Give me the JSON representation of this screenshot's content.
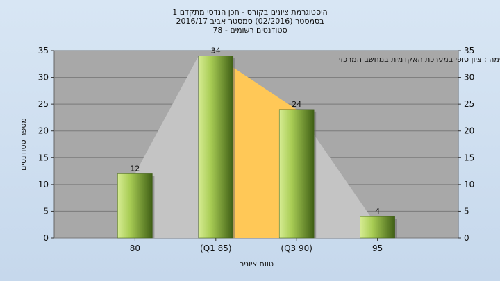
{
  "chart_data": {
    "type": "bar",
    "title_lines": [
      "היסטוגרמת ציונים בקורס - חכן הנדסי מתקדם 1",
      "בסמסטר  (02/2016)  סמסטר אביב 2016/17",
      "סטודנטים רשומים - 78"
    ],
    "annotation": "במשימה : ציון סופי במערכת האקדמית במחשב המרכזי",
    "categories": [
      "80",
      "(Q1 85)",
      "(Q3 90)",
      "95"
    ],
    "values": [
      12,
      34,
      24,
      4
    ],
    "data_labels": [
      "12",
      "34",
      "24",
      "4"
    ],
    "xlabel": "טווח ציונים",
    "ylabel": "מספר סטודנטים",
    "ylim": [
      0,
      35
    ],
    "yticks": [
      0,
      5,
      10,
      15,
      20,
      25,
      30,
      35
    ],
    "grid": true,
    "colors": {
      "plot_bg": "#a8a8a8",
      "bar_light": "#c4e07a",
      "bar_dark": "#4e6e1c",
      "area_gray": "#c4c4c4",
      "area_orange": "#ffc857"
    }
  }
}
